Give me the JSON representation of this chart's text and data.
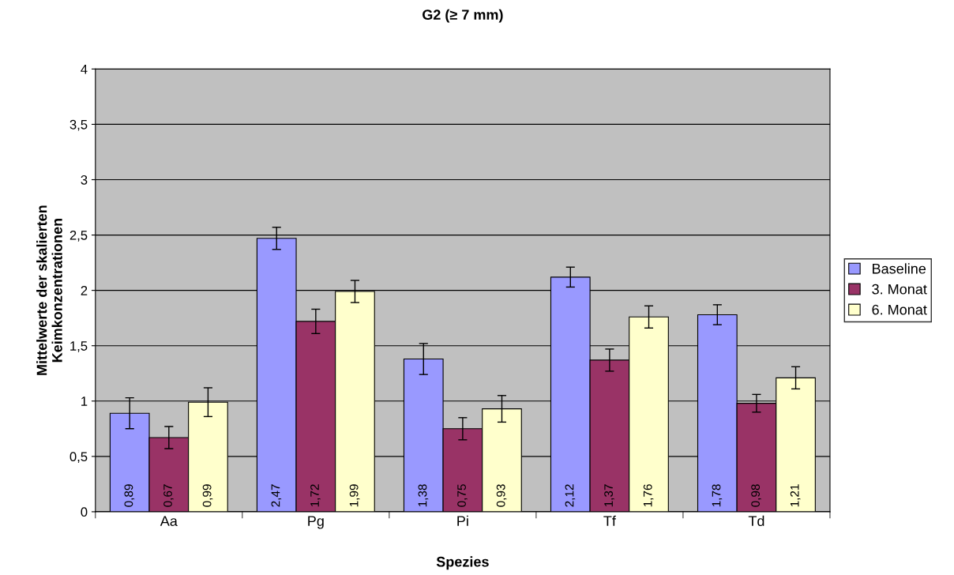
{
  "chart_data": {
    "type": "bar",
    "title": "G2 (≥ 7 mm)",
    "xlabel": "Spezies",
    "ylabel": "Mittelwerte der skalierten\nKeimkonzentrationen",
    "categories": [
      "Aa",
      "Pg",
      "Pi",
      "Tf",
      "Td"
    ],
    "series": [
      {
        "name": "Baseline",
        "color": "#9999ff",
        "values": [
          0.89,
          2.47,
          1.38,
          2.12,
          1.78
        ],
        "errors": [
          0.14,
          0.1,
          0.14,
          0.09,
          0.09
        ],
        "value_labels": [
          "0,89",
          "2,47",
          "1,38",
          "2,12",
          "1,78"
        ]
      },
      {
        "name": "3. Monat",
        "color": "#993366",
        "values": [
          0.67,
          1.72,
          0.75,
          1.37,
          0.98
        ],
        "errors": [
          0.1,
          0.11,
          0.1,
          0.1,
          0.08
        ],
        "value_labels": [
          "0,67",
          "1,72",
          "0,75",
          "1,37",
          "0,98"
        ]
      },
      {
        "name": "6. Monat",
        "color": "#ffffcc",
        "values": [
          0.99,
          1.99,
          0.93,
          1.76,
          1.21
        ],
        "errors": [
          0.13,
          0.1,
          0.12,
          0.1,
          0.1
        ],
        "value_labels": [
          "0,99",
          "1,99",
          "0,93",
          "1,76",
          "1,21"
        ]
      }
    ],
    "ylim": [
      0,
      4
    ],
    "yticks": [
      0,
      {
        "value": 0.5,
        "label": "0,5"
      },
      1,
      {
        "value": 1.5,
        "label": "1,5"
      },
      2,
      {
        "value": 2.5,
        "label": "2,5"
      },
      3,
      {
        "value": 3.5,
        "label": "3,5"
      },
      4
    ],
    "grid": "y",
    "legend": "right"
  }
}
